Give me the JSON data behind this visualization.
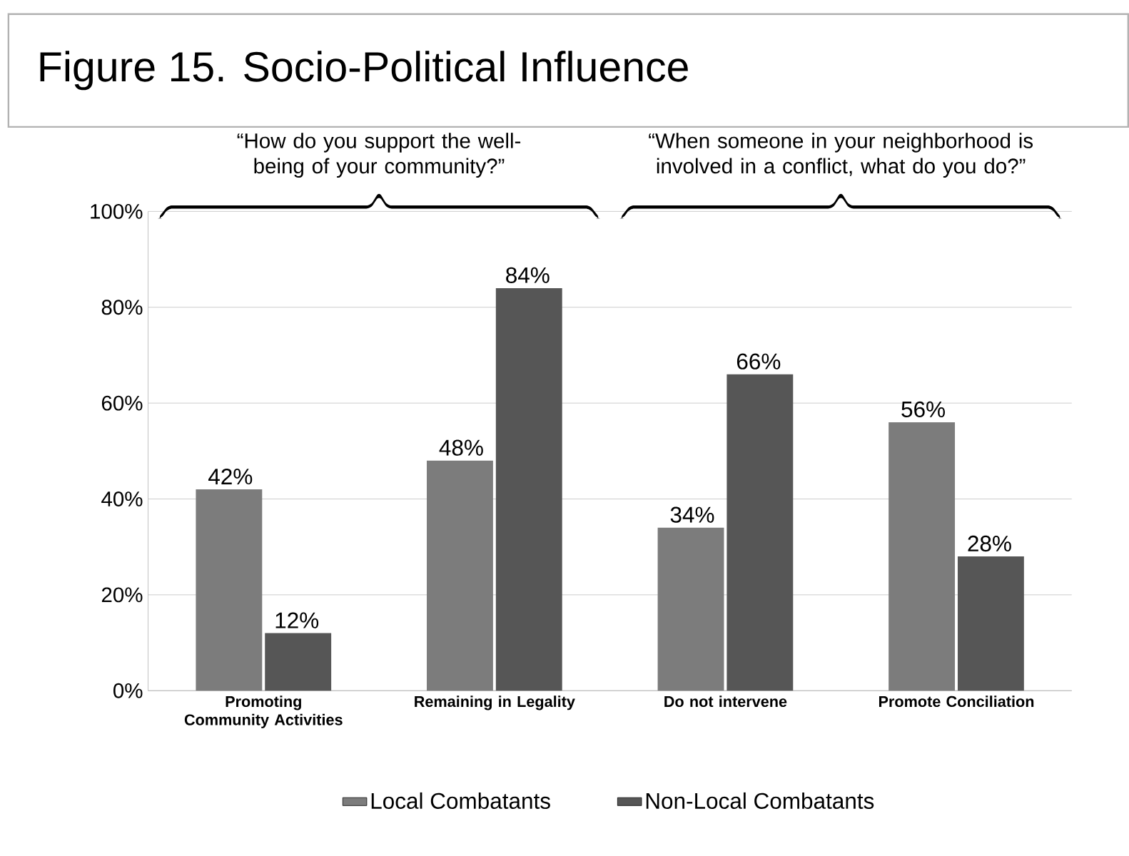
{
  "chart_data": {
    "type": "bar",
    "title": "Figure 15. Socio-Political Influence",
    "categories": [
      "Promoting Community Activities",
      "Remaining in Legality",
      "Do not intervene",
      "Promote Conciliation"
    ],
    "series": [
      {
        "name": "Local Combatants",
        "color": "#7c7c7c",
        "values": [
          42,
          48,
          34,
          56
        ]
      },
      {
        "name": "Non-Local Combatants",
        "color": "#565656",
        "values": [
          12,
          84,
          66,
          28
        ]
      }
    ],
    "ylim": [
      0,
      100
    ],
    "yticks": [
      {
        "value": 0,
        "label": "0%"
      },
      {
        "value": 20,
        "label": "20%"
      },
      {
        "value": 40,
        "label": "40%"
      },
      {
        "value": 60,
        "label": "60%"
      },
      {
        "value": 80,
        "label": "80%"
      },
      {
        "value": 100,
        "label": "100%"
      }
    ],
    "value_labels": [
      [
        "42%",
        "48%",
        "34%",
        "56%"
      ],
      [
        "12%",
        "84%",
        "66%",
        "28%"
      ]
    ],
    "annotations": [
      "“How do you support the well-being of your community?”",
      "“When someone in your neighborhood is involved in a conflict, what do you do?”"
    ],
    "grid": "y",
    "legend": "bottom"
  }
}
